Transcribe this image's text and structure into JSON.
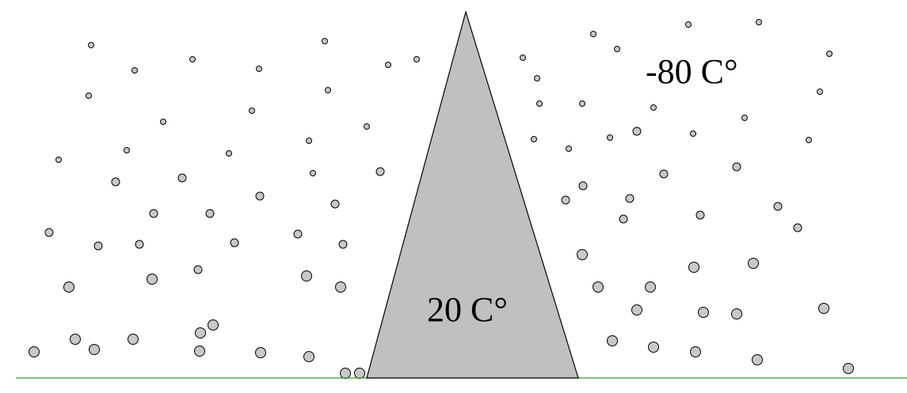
{
  "labels": {
    "cold": "-80 C°",
    "warm": "20 C°"
  }
}
